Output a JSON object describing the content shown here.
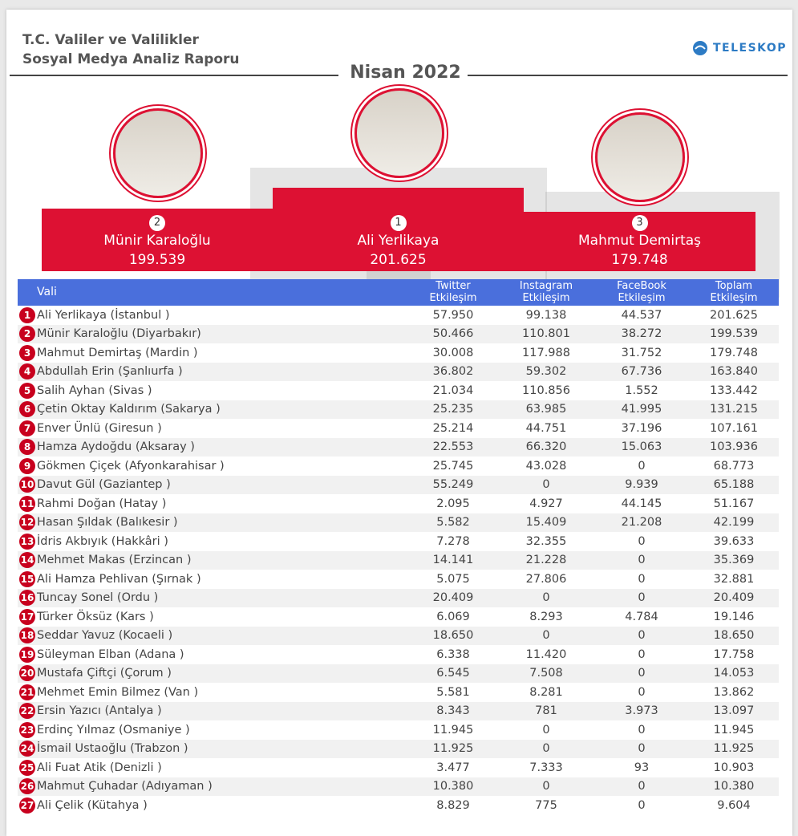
{
  "header": {
    "title_lines": [
      "T.C. Valiler ve Valilikler",
      "Sosyal Medya Analiz Raporu"
    ],
    "logo": "TELESKOP",
    "period": "Nisan 2022"
  },
  "podium": [
    {
      "rank": "2",
      "name": "Münir Karaloğlu",
      "score": "199.539"
    },
    {
      "rank": "1",
      "name": "Ali Yerlikaya",
      "score": "201.625"
    },
    {
      "rank": "3",
      "name": "Mahmut Demirtaş",
      "score": "179.748"
    }
  ],
  "table": {
    "columns": [
      [
        "Vali"
      ],
      [
        "Twitter",
        "Etkileşim"
      ],
      [
        "Instagram",
        "Etkileşim"
      ],
      [
        "FaceBook",
        "Etkileşim"
      ],
      [
        "Toplam",
        "Etkileşim"
      ]
    ],
    "rows": [
      [
        "1",
        "Ali Yerlikaya (İstanbul )",
        "57.950",
        "99.138",
        "44.537",
        "201.625"
      ],
      [
        "2",
        "Münir Karaloğlu (Diyarbakır)",
        "50.466",
        "110.801",
        "38.272",
        "199.539"
      ],
      [
        "3",
        "Mahmut Demirtaş (Mardin )",
        "30.008",
        "117.988",
        "31.752",
        "179.748"
      ],
      [
        "4",
        "Abdullah Erin (Şanlıurfa )",
        "36.802",
        "59.302",
        "67.736",
        "163.840"
      ],
      [
        "5",
        "Salih Ayhan (Sivas )",
        "21.034",
        "110.856",
        "1.552",
        "133.442"
      ],
      [
        "6",
        "Çetin Oktay Kaldırım (Sakarya )",
        "25.235",
        "63.985",
        "41.995",
        "131.215"
      ],
      [
        "7",
        "Enver Ünlü (Giresun )",
        "25.214",
        "44.751",
        "37.196",
        "107.161"
      ],
      [
        "8",
        "Hamza Aydoğdu (Aksaray )",
        "22.553",
        "66.320",
        "15.063",
        "103.936"
      ],
      [
        "9",
        "Gökmen Çiçek (Afyonkarahisar )",
        "25.745",
        "43.028",
        "0",
        "68.773"
      ],
      [
        "10",
        "Davut Gül (Gaziantep )",
        "55.249",
        "0",
        "9.939",
        "65.188"
      ],
      [
        "11",
        "Rahmi Doğan (Hatay )",
        "2.095",
        "4.927",
        "44.145",
        "51.167"
      ],
      [
        "12",
        "Hasan Şıldak (Balıkesir )",
        "5.582",
        "15.409",
        "21.208",
        "42.199"
      ],
      [
        "13",
        "İdris Akbıyık (Hakkâri )",
        "7.278",
        "32.355",
        "0",
        "39.633"
      ],
      [
        "14",
        "Mehmet Makas (Erzincan )",
        "14.141",
        "21.228",
        "0",
        "35.369"
      ],
      [
        "15",
        "Ali Hamza Pehlivan (Şırnak )",
        "5.075",
        "27.806",
        "0",
        "32.881"
      ],
      [
        "16",
        "Tuncay Sonel (Ordu )",
        "20.409",
        "0",
        "0",
        "20.409"
      ],
      [
        "17",
        "Türker Öksüz (Kars )",
        "6.069",
        "8.293",
        "4.784",
        "19.146"
      ],
      [
        "18",
        "Seddar Yavuz (Kocaeli )",
        "18.650",
        "0",
        "0",
        "18.650"
      ],
      [
        "19",
        "Süleyman Elban (Adana )",
        "6.338",
        "11.420",
        "0",
        "17.758"
      ],
      [
        "20",
        "Mustafa Çiftçi (Çorum )",
        "6.545",
        "7.508",
        "0",
        "14.053"
      ],
      [
        "21",
        "Mehmet Emin Bilmez (Van )",
        "5.581",
        "8.281",
        "0",
        "13.862"
      ],
      [
        "22",
        "Ersin Yazıcı (Antalya )",
        "8.343",
        "781",
        "3.973",
        "13.097"
      ],
      [
        "23",
        "Erdinç Yılmaz (Osmaniye )",
        "11.945",
        "0",
        "0",
        "11.945"
      ],
      [
        "24",
        "İsmail Ustaoğlu (Trabzon )",
        "11.925",
        "0",
        "0",
        "11.925"
      ],
      [
        "25",
        "Ali Fuat Atik (Denizli )",
        "3.477",
        "7.333",
        "93",
        "10.903"
      ],
      [
        "26",
        "Mahmut Çuhadar (Adıyaman )",
        "10.380",
        "0",
        "0",
        "10.380"
      ],
      [
        "27",
        "Ali Çelik (Kütahya )",
        "8.829",
        "775",
        "0",
        "9.604"
      ]
    ]
  }
}
